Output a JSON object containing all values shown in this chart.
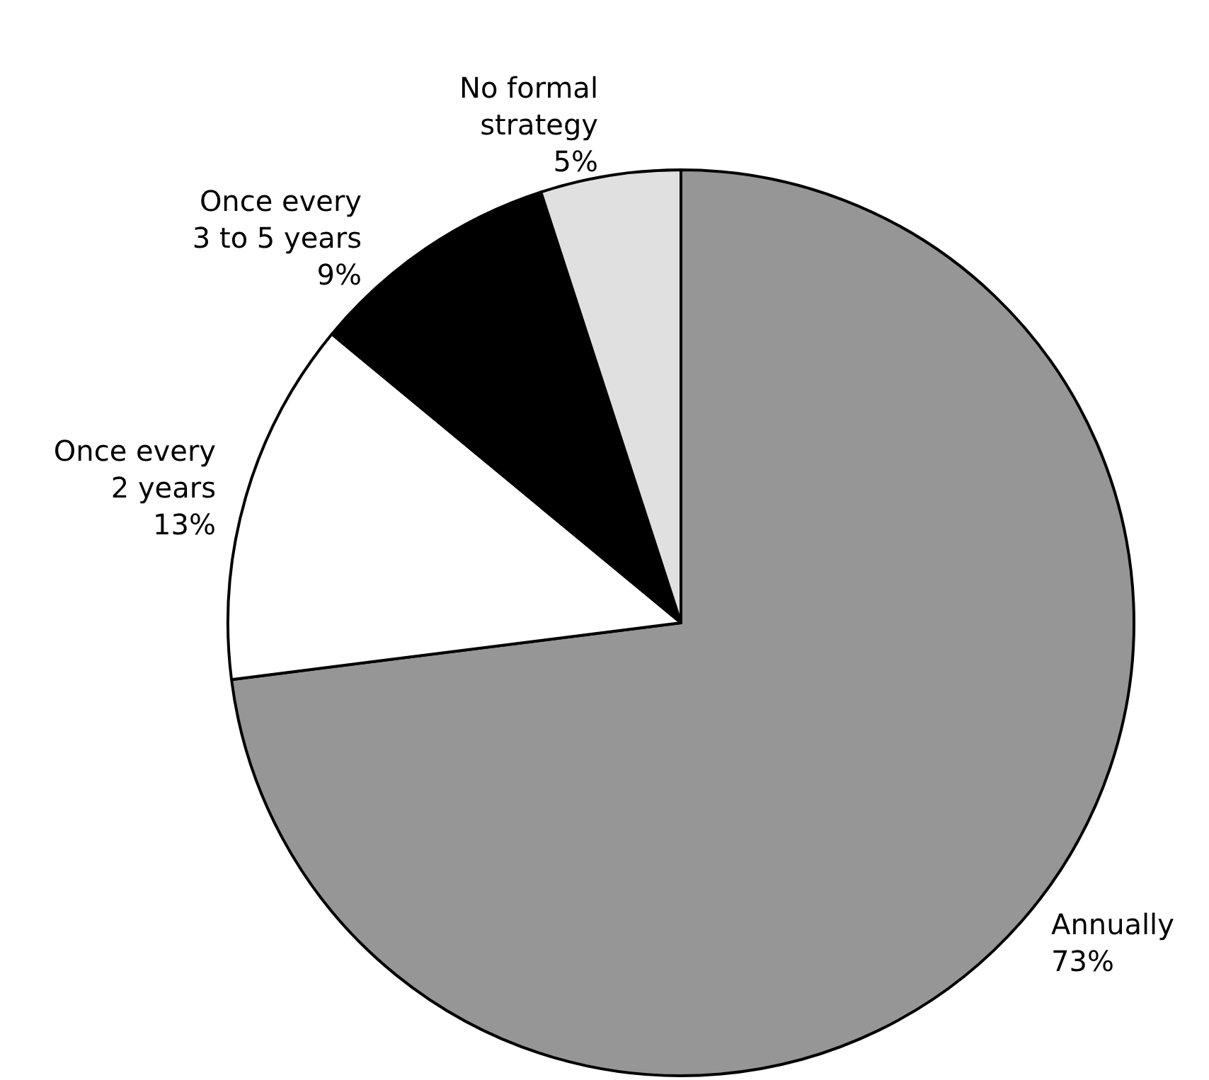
{
  "chart_data": {
    "type": "pie",
    "categories": [
      "Annually",
      "Once every\n2 years",
      "Once every\n3 to 5 years",
      "No formal\nstrategy"
    ],
    "values": [
      73,
      13,
      9,
      5
    ],
    "colors": [
      "#969696",
      "#ffffff",
      "#000000",
      "#e0e0e0"
    ],
    "value_labels": [
      "73%",
      "13%",
      "9%",
      "5%"
    ]
  }
}
